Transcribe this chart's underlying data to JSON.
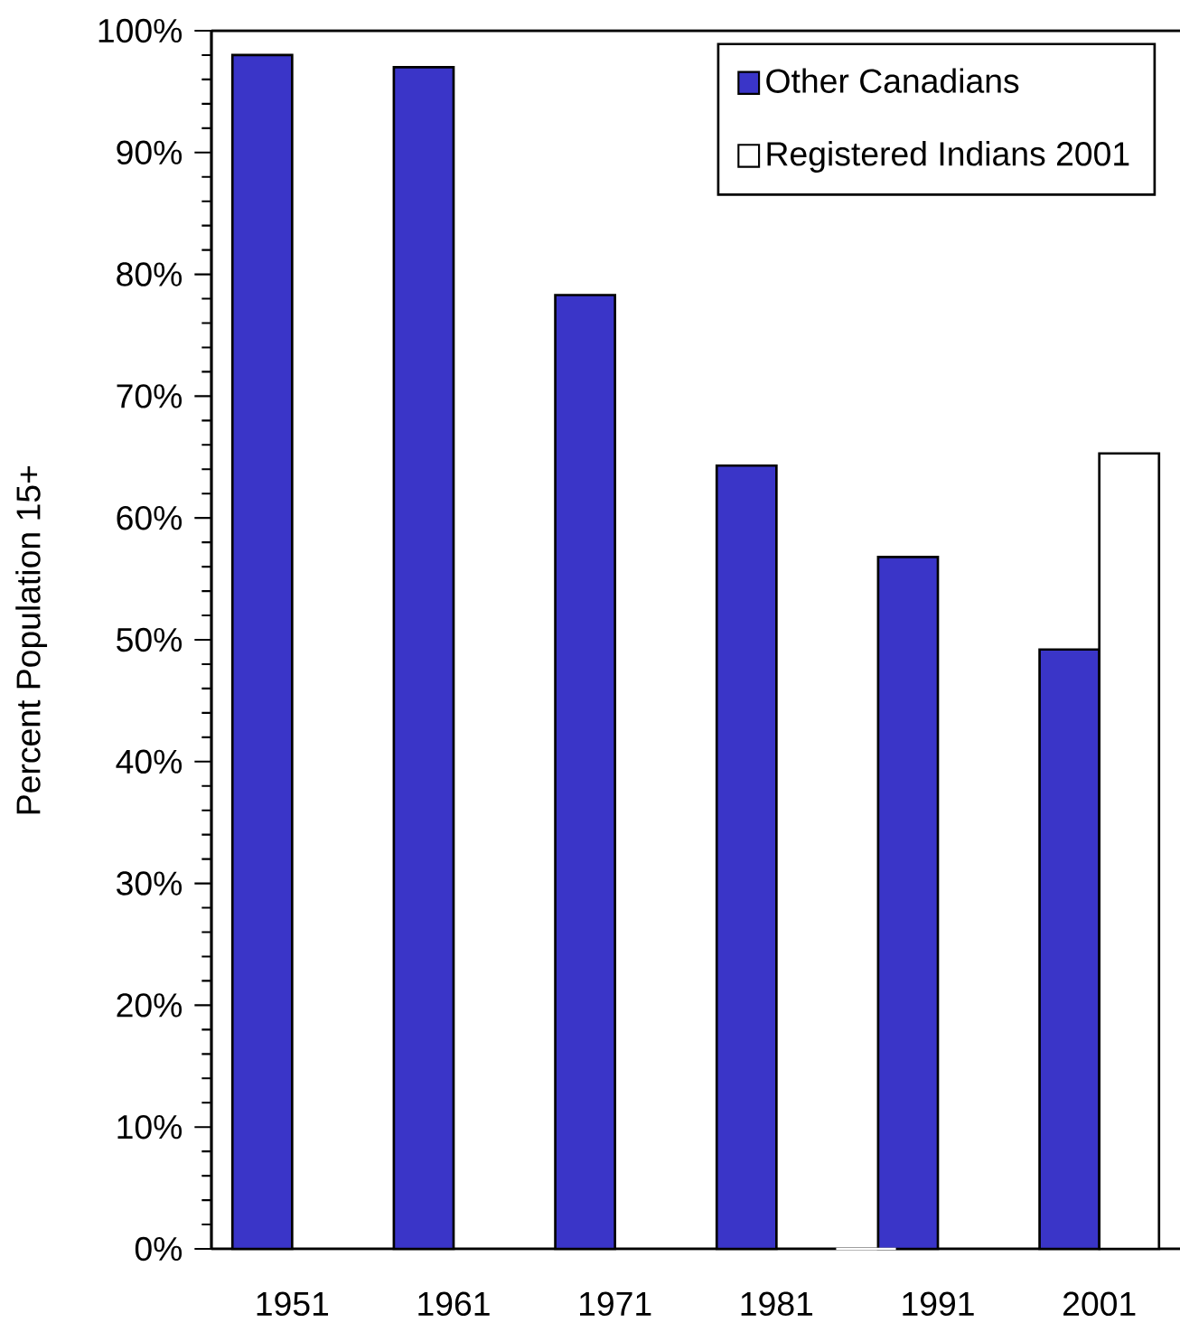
{
  "chart_data": {
    "type": "bar",
    "ylabel": "Percent Population 15+",
    "categories": [
      "1951",
      "1961",
      "1971",
      "1981",
      "1991",
      "2001"
    ],
    "series": [
      {
        "name": "Other Canadians",
        "color": "#3a35c8",
        "values": [
          98,
          97,
          78.3,
          64.3,
          56.8,
          49.2
        ]
      },
      {
        "name": "Registered Indians 2001",
        "color": "#ffffff",
        "values": [
          null,
          null,
          null,
          0,
          null,
          65.3
        ]
      }
    ],
    "ylim": [
      0,
      100
    ],
    "yticks": [
      {
        "value": 0,
        "label": "0%"
      },
      {
        "value": 10,
        "label": "10%"
      },
      {
        "value": 20,
        "label": "20%"
      },
      {
        "value": 30,
        "label": "30%"
      },
      {
        "value": 40,
        "label": "40%"
      },
      {
        "value": 50,
        "label": "50%"
      },
      {
        "value": 60,
        "label": "60%"
      },
      {
        "value": 70,
        "label": "70%"
      },
      {
        "value": 80,
        "label": "80%"
      },
      {
        "value": 90,
        "label": "90%"
      },
      {
        "value": 100,
        "label": "100%"
      }
    ],
    "grid": false,
    "legend": "top right"
  }
}
